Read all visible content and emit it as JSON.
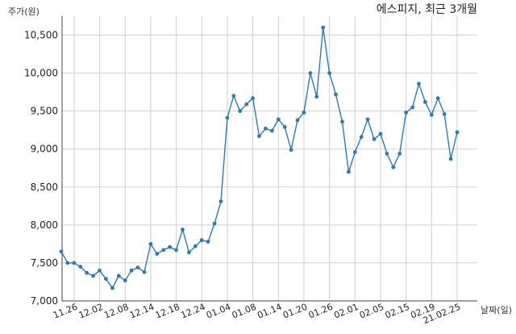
{
  "chart_data": {
    "type": "line",
    "title": "에스피지, 최근 3개월",
    "ylabel": "주가(원)",
    "xlabel": "날짜(일)",
    "ylim": [
      7000,
      10750
    ],
    "yticks": [
      7000,
      7500,
      8000,
      8500,
      9000,
      9500,
      10000,
      10500
    ],
    "ytick_labels": [
      "7,000",
      "7,500",
      "8,000",
      "8,500",
      "9,000",
      "9,500",
      "10,000",
      "10,500"
    ],
    "x_tick_labels": [
      "11.26",
      "12.02",
      "12.08",
      "12.14",
      "12.18",
      "12.24",
      "01.04",
      "01.08",
      "01.14",
      "01.20",
      "01.26",
      "02.01",
      "02.05",
      "02.15",
      "02.19",
      "21.02.25"
    ],
    "grid": true,
    "color": "#2b7bb9",
    "series": [
      {
        "values": [
          7650,
          7500,
          7500,
          7450,
          7370,
          7330,
          7400,
          7290,
          7170,
          7330,
          7270,
          7400,
          7440,
          7380,
          7750,
          7620,
          7670,
          7710,
          7670,
          7940,
          7640,
          7720,
          7800,
          7780,
          8020,
          8310,
          9410,
          9700,
          9500,
          9590,
          9670,
          9170,
          9270,
          9240,
          9390,
          9290,
          8990,
          9380,
          9480,
          10000,
          9690,
          10600,
          10000,
          9720,
          9360,
          8700,
          8960,
          9160,
          9390,
          9130,
          9200,
          8940,
          8760,
          8940,
          9480,
          9550,
          9860,
          9620,
          9450,
          9670,
          9460,
          8870,
          9220
        ]
      }
    ]
  }
}
